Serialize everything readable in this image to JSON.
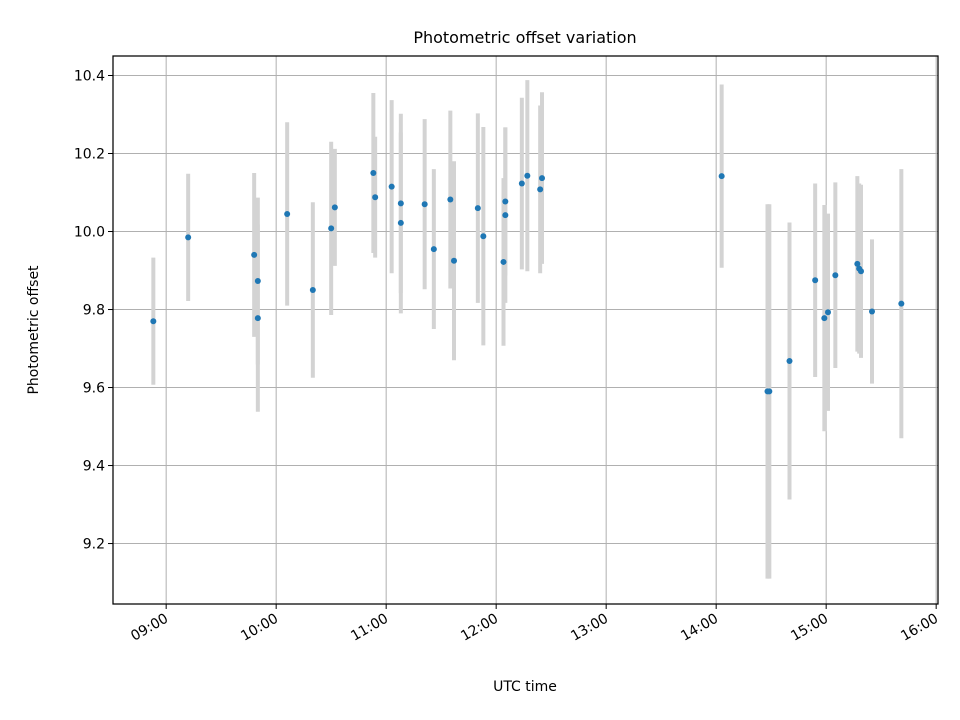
{
  "chart_data": {
    "type": "scatter",
    "title": "Photometric offset variation",
    "xlabel": "UTC time",
    "ylabel": "Photometric offset",
    "grid": true,
    "x_tick_labels": [
      "09:00",
      "10:00",
      "11:00",
      "12:00",
      "13:00",
      "14:00",
      "15:00",
      "16:00"
    ],
    "y_tick_labels": [
      "9.2",
      "9.4",
      "9.6",
      "9.8",
      "10.0",
      "10.2",
      "10.4"
    ],
    "xlim": [
      "08:31",
      "16:01"
    ],
    "ylim": [
      9.045,
      10.45
    ],
    "colors": {
      "point": "#1f77b4",
      "errorbar": "#d3d3d3",
      "grid": "#b0b0b0"
    },
    "points": [
      {
        "x": "08:53",
        "y": 9.77,
        "err": 0.163
      },
      {
        "x": "09:12",
        "y": 9.985,
        "err": 0.163
      },
      {
        "x": "09:48",
        "y": 9.94,
        "err": 0.21
      },
      {
        "x": "09:50",
        "y": 9.873,
        "err": 0.214
      },
      {
        "x": "09:50",
        "y": 9.778,
        "err": 0.24
      },
      {
        "x": "10:06",
        "y": 10.045,
        "err": 0.235
      },
      {
        "x": "10:20",
        "y": 9.85,
        "err": 0.225
      },
      {
        "x": "10:30",
        "y": 10.008,
        "err": 0.222
      },
      {
        "x": "10:32",
        "y": 10.062,
        "err": 0.15
      },
      {
        "x": "10:53",
        "y": 10.15,
        "err": 0.205
      },
      {
        "x": "10:54",
        "y": 10.088,
        "err": 0.155
      },
      {
        "x": "11:03",
        "y": 10.115,
        "err": 0.222
      },
      {
        "x": "11:08",
        "y": 10.022,
        "err": 0.232
      },
      {
        "x": "11:08",
        "y": 10.072,
        "err": 0.23
      },
      {
        "x": "11:21",
        "y": 10.07,
        "err": 0.218
      },
      {
        "x": "11:26",
        "y": 9.955,
        "err": 0.205
      },
      {
        "x": "11:35",
        "y": 10.082,
        "err": 0.228
      },
      {
        "x": "11:37",
        "y": 9.925,
        "err": 0.255
      },
      {
        "x": "11:50",
        "y": 10.06,
        "err": 0.243
      },
      {
        "x": "11:53",
        "y": 9.988,
        "err": 0.28
      },
      {
        "x": "12:04",
        "y": 9.922,
        "err": 0.215
      },
      {
        "x": "12:05",
        "y": 10.077,
        "err": 0.19
      },
      {
        "x": "12:05",
        "y": 10.042,
        "err": 0.225
      },
      {
        "x": "12:14",
        "y": 10.123,
        "err": 0.22
      },
      {
        "x": "12:17",
        "y": 10.143,
        "err": 0.245
      },
      {
        "x": "12:24",
        "y": 10.108,
        "err": 0.215
      },
      {
        "x": "12:25",
        "y": 10.137,
        "err": 0.22
      },
      {
        "x": "14:03",
        "y": 10.142,
        "err": 0.235
      },
      {
        "x": "14:28",
        "y": 9.59,
        "err": 0.48
      },
      {
        "x": "14:29",
        "y": 9.59,
        "err": 0.48
      },
      {
        "x": "14:40",
        "y": 9.668,
        "err": 0.355
      },
      {
        "x": "14:54",
        "y": 9.875,
        "err": 0.248
      },
      {
        "x": "14:59",
        "y": 9.778,
        "err": 0.29
      },
      {
        "x": "15:01",
        "y": 9.793,
        "err": 0.253
      },
      {
        "x": "15:05",
        "y": 9.888,
        "err": 0.238
      },
      {
        "x": "15:17",
        "y": 9.917,
        "err": 0.225
      },
      {
        "x": "15:18",
        "y": 9.905,
        "err": 0.218
      },
      {
        "x": "15:19",
        "y": 9.898,
        "err": 0.222
      },
      {
        "x": "15:25",
        "y": 9.795,
        "err": 0.185
      },
      {
        "x": "15:41",
        "y": 9.815,
        "err": 0.345
      }
    ]
  }
}
